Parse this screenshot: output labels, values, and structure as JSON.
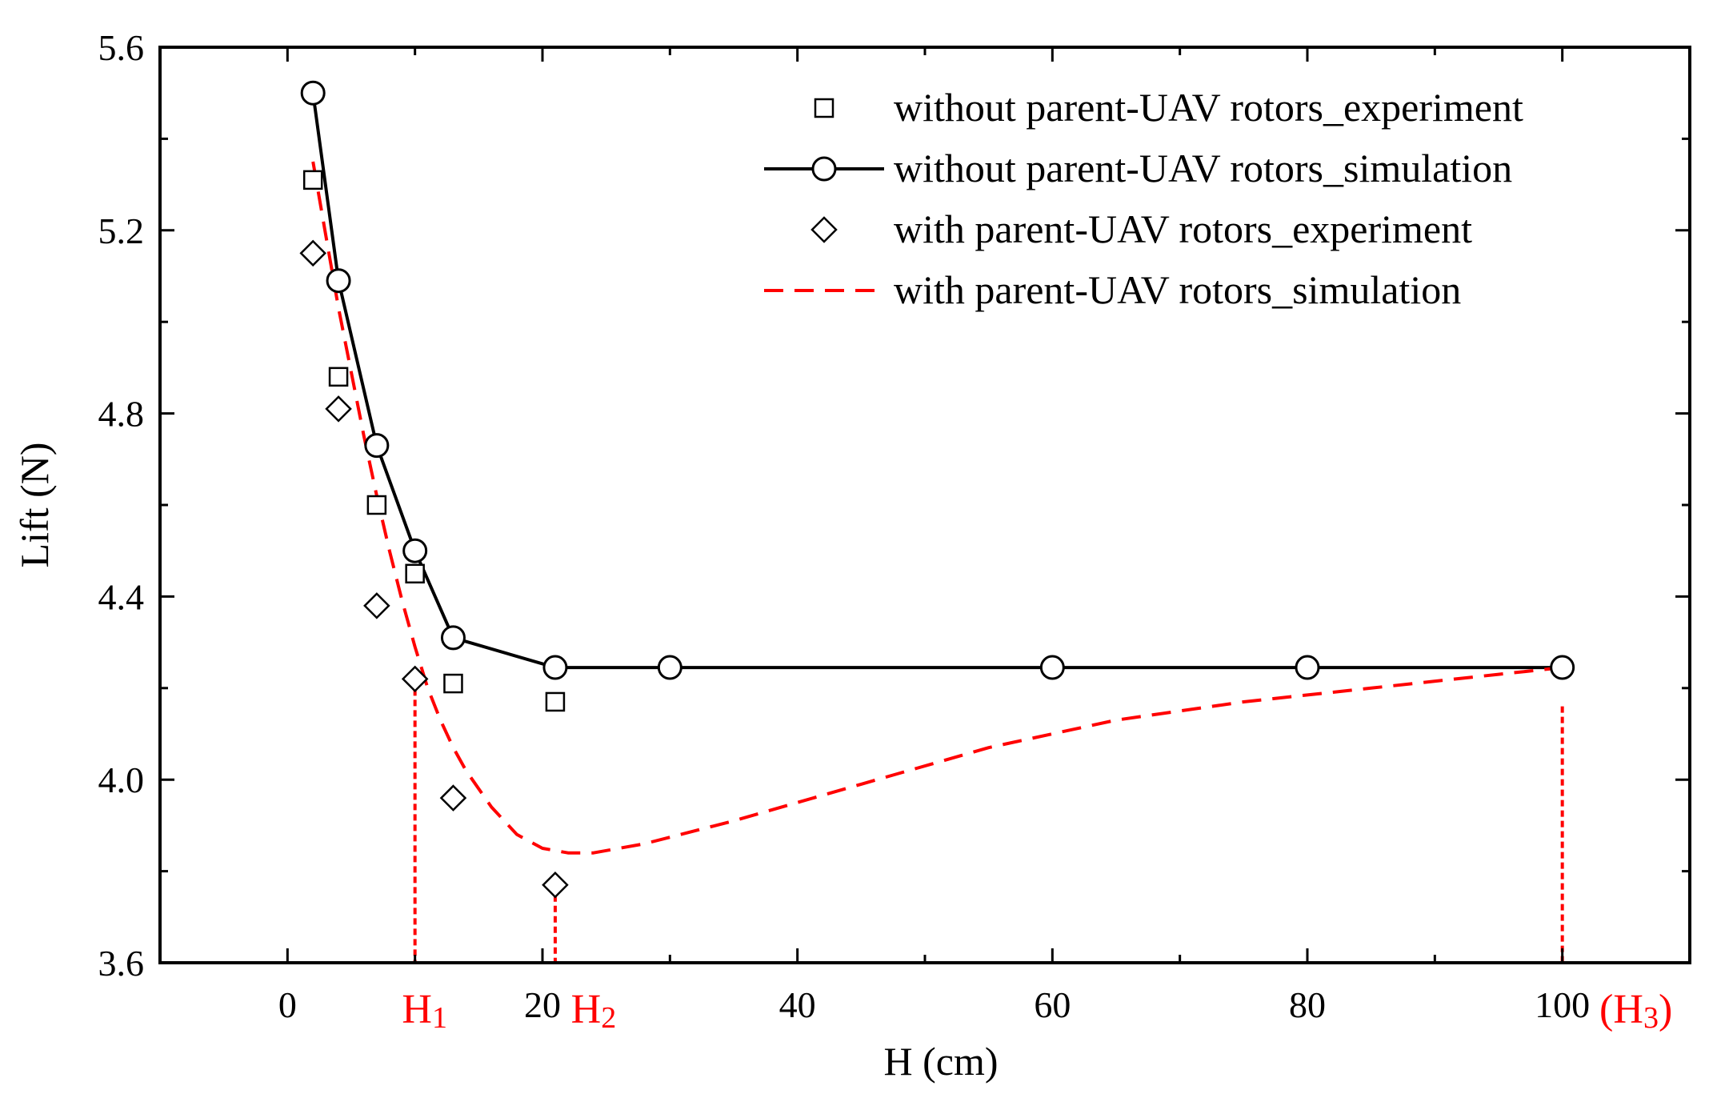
{
  "chart_data": {
    "type": "scatter",
    "xlabel": "H (cm)",
    "ylabel": "Lift (N)",
    "xlim": [
      -10,
      110
    ],
    "ylim": [
      3.6,
      5.6
    ],
    "xticks": [
      0,
      20,
      40,
      60,
      80,
      100
    ],
    "yticks": [
      3.6,
      4.0,
      4.4,
      4.8,
      5.2,
      5.6
    ],
    "series": [
      {
        "name": "without parent-UAV rotors_experiment",
        "style": "square-marker",
        "color": "#000000",
        "x": [
          2,
          4,
          7,
          10,
          13,
          21
        ],
        "y": [
          5.31,
          4.88,
          4.6,
          4.45,
          4.21,
          4.17
        ]
      },
      {
        "name": "without parent-UAV rotors_simulation",
        "style": "line-circle",
        "color": "#000000",
        "x": [
          2,
          4,
          7,
          10,
          13,
          21,
          30,
          60,
          80,
          100
        ],
        "y": [
          5.5,
          5.09,
          4.73,
          4.5,
          4.31,
          4.245,
          4.245,
          4.245,
          4.245,
          4.245
        ]
      },
      {
        "name": "with parent-UAV rotors_experiment",
        "style": "diamond-marker",
        "color": "#000000",
        "x": [
          2,
          4,
          7,
          10,
          13,
          21
        ],
        "y": [
          5.15,
          4.81,
          4.38,
          4.22,
          3.96,
          3.77
        ]
      },
      {
        "name": "with parent-UAV rotors_simulation",
        "style": "dashed-line",
        "color": "#ff0000",
        "x": [
          2,
          3,
          4,
          5,
          6,
          7,
          8,
          9,
          10,
          11,
          12,
          13,
          14,
          16,
          18,
          20,
          22,
          24,
          28,
          35,
          45,
          55,
          65,
          75,
          85,
          95,
          100
        ],
        "y": [
          5.35,
          5.19,
          5.03,
          4.89,
          4.75,
          4.62,
          4.5,
          4.39,
          4.29,
          4.2,
          4.13,
          4.07,
          4.02,
          3.94,
          3.88,
          3.85,
          3.84,
          3.84,
          3.86,
          3.91,
          3.99,
          4.07,
          4.13,
          4.17,
          4.2,
          4.23,
          4.245
        ]
      }
    ],
    "annotations": [
      {
        "label": "H",
        "sub": "1",
        "x": 10,
        "from_y": 4.22,
        "paren": false,
        "color": "#ff0000"
      },
      {
        "label": "H",
        "sub": "2",
        "x": 21,
        "from_y": 3.77,
        "paren": false,
        "color": "#ff0000"
      },
      {
        "label": "H",
        "sub": "3",
        "x": 100,
        "from_y": 4.16,
        "paren": true,
        "color": "#ff0000"
      }
    ],
    "legend_position": "top-right"
  }
}
